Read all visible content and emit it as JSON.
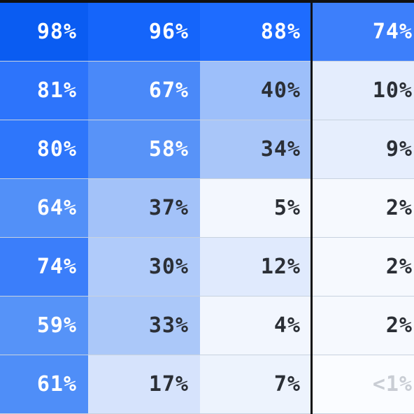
{
  "table": {
    "rows": [
      [
        {
          "text": "98%",
          "bg": "#0a5cf2",
          "fg": "#ffffff"
        },
        {
          "text": "96%",
          "bg": "#1565fa",
          "fg": "#ffffff"
        },
        {
          "text": "88%",
          "bg": "#1e6cff",
          "fg": "#ffffff"
        },
        {
          "text": "74%",
          "bg": "#3d7ffb",
          "fg": "#ffffff"
        }
      ],
      [
        {
          "text": "81%",
          "bg": "#2d74fb",
          "fg": "#ffffff"
        },
        {
          "text": "67%",
          "bg": "#4a89f9",
          "fg": "#ffffff"
        },
        {
          "text": "40%",
          "bg": "#9dbffa",
          "fg": "#2b2f36"
        },
        {
          "text": "10%",
          "bg": "#e4edfd",
          "fg": "#2b2f36"
        }
      ],
      [
        {
          "text": "80%",
          "bg": "#2e76fb",
          "fg": "#ffffff"
        },
        {
          "text": "58%",
          "bg": "#5893f8",
          "fg": "#ffffff"
        },
        {
          "text": "34%",
          "bg": "#a9c6f9",
          "fg": "#2b2f36"
        },
        {
          "text": "9%",
          "bg": "#e6eefd",
          "fg": "#2b2f36"
        }
      ],
      [
        {
          "text": "64%",
          "bg": "#5290f8",
          "fg": "#ffffff"
        },
        {
          "text": "37%",
          "bg": "#a3c2f9",
          "fg": "#2b2f36"
        },
        {
          "text": "5%",
          "bg": "#f3f7fe",
          "fg": "#2b2f36"
        },
        {
          "text": "2%",
          "bg": "#f6f9fe",
          "fg": "#2b2f36"
        }
      ],
      [
        {
          "text": "74%",
          "bg": "#3b7efa",
          "fg": "#ffffff"
        },
        {
          "text": "30%",
          "bg": "#b0cbfa",
          "fg": "#2b2f36"
        },
        {
          "text": "12%",
          "bg": "#e0eafd",
          "fg": "#2b2f36"
        },
        {
          "text": "2%",
          "bg": "#f6f9fe",
          "fg": "#2b2f36"
        }
      ],
      [
        {
          "text": "59%",
          "bg": "#5693f8",
          "fg": "#ffffff"
        },
        {
          "text": "33%",
          "bg": "#abc8f9",
          "fg": "#2b2f36"
        },
        {
          "text": "4%",
          "bg": "#f2f6fe",
          "fg": "#2b2f36"
        },
        {
          "text": "2%",
          "bg": "#f6f9fe",
          "fg": "#2b2f36"
        }
      ],
      [
        {
          "text": "61%",
          "bg": "#4f8ef8",
          "fg": "#ffffff"
        },
        {
          "text": "17%",
          "bg": "#d6e3fc",
          "fg": "#2b2f36"
        },
        {
          "text": "7%",
          "bg": "#edf3fd",
          "fg": "#2b2f36"
        },
        {
          "text": "<1%",
          "bg": "#fafcff",
          "fg": "#c9cdd4"
        }
      ]
    ]
  }
}
